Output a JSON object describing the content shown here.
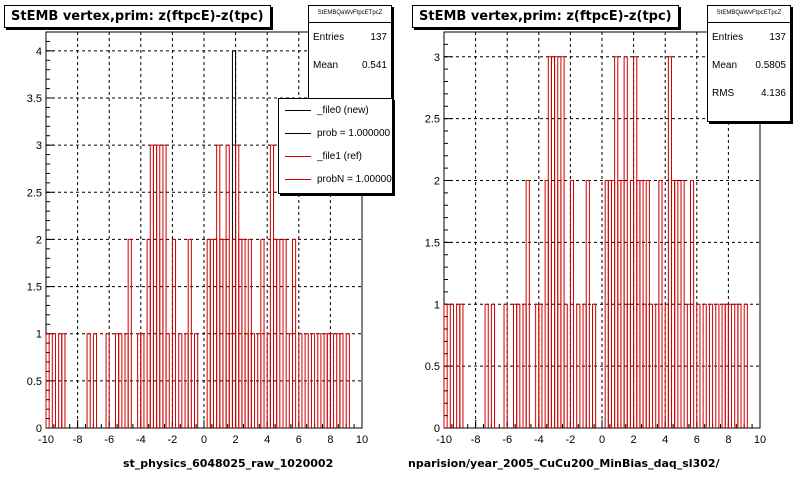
{
  "chart_data": [
    {
      "type": "histogram",
      "title": "StEMB  vertex,prim: z(ftpcE)-z(tpc)",
      "xlabel": "st_physics_6048025_raw_1020002",
      "xlim": [
        -10,
        10
      ],
      "ylim": [
        0,
        4.2
      ],
      "xticks": [
        "-10",
        "-8",
        "-6",
        "-4",
        "-2",
        "0",
        "2",
        "4",
        "6",
        "8",
        "10"
      ],
      "yticks": [
        "0",
        "0.5",
        "1",
        "1.5",
        "2",
        "2.5",
        "3",
        "3.5",
        "4"
      ],
      "grid": true,
      "bin_width": 0.2,
      "series": [
        {
          "name": "_file0 (new)",
          "color": "#000000",
          "values": [
            [
              1.8,
              4
            ]
          ]
        },
        {
          "name": "_file1 (ref)",
          "color": "#cc0000",
          "values": [
            [
              -10,
              1
            ],
            [
              -9.6,
              1
            ],
            [
              -9.2,
              1
            ],
            [
              -9.0,
              1
            ],
            [
              -7.4,
              1
            ],
            [
              -7.0,
              1
            ],
            [
              -6.2,
              1
            ],
            [
              -5.6,
              1
            ],
            [
              -5.4,
              1
            ],
            [
              -5.0,
              1
            ],
            [
              -4.8,
              2
            ],
            [
              -4.2,
              1
            ],
            [
              -4.0,
              1
            ],
            [
              -3.6,
              2
            ],
            [
              -3.4,
              3
            ],
            [
              -3.2,
              3
            ],
            [
              -3.0,
              3
            ],
            [
              -2.8,
              2
            ],
            [
              -2.6,
              3
            ],
            [
              -2.4,
              1
            ],
            [
              -2.0,
              2
            ],
            [
              -1.6,
              1
            ],
            [
              -1.2,
              1
            ],
            [
              -1.0,
              2
            ],
            [
              -0.6,
              1
            ],
            [
              0.2,
              2
            ],
            [
              0.4,
              2
            ],
            [
              0.6,
              2
            ],
            [
              0.8,
              3
            ],
            [
              1.0,
              2
            ],
            [
              1.2,
              2
            ],
            [
              1.4,
              3
            ],
            [
              1.6,
              1
            ],
            [
              1.8,
              2
            ],
            [
              2.0,
              3
            ],
            [
              2.2,
              2
            ],
            [
              2.4,
              2
            ],
            [
              2.6,
              1
            ],
            [
              2.8,
              2
            ],
            [
              3.0,
              1
            ],
            [
              3.4,
              1
            ],
            [
              3.6,
              2
            ],
            [
              4.0,
              1
            ],
            [
              4.2,
              3
            ],
            [
              4.4,
              2
            ],
            [
              4.6,
              2
            ],
            [
              5.0,
              2
            ],
            [
              5.4,
              1
            ],
            [
              5.6,
              2
            ],
            [
              6.0,
              1
            ],
            [
              6.4,
              1
            ],
            [
              6.8,
              1
            ],
            [
              7.2,
              1
            ],
            [
              7.6,
              1
            ],
            [
              7.8,
              1
            ],
            [
              8.0,
              1
            ],
            [
              8.4,
              1
            ],
            [
              8.6,
              1
            ],
            [
              9.0,
              1
            ]
          ]
        }
      ],
      "stats": {
        "name": "StEMBQaWvFtpcETpcZ",
        "entries_label": "Entries",
        "entries": "137",
        "mean_label": "Mean",
        "mean": "0.541"
      },
      "legend": {
        "placement": "top-right",
        "entries": [
          {
            "label": "_file0 (new)",
            "color": "#000000"
          },
          {
            "label": "prob = 1.000000",
            "color": "#000000"
          },
          {
            "label": "_file1 (ref)",
            "color": "#cc0000"
          },
          {
            "label": "probN = 1.000000",
            "color": "#cc0000"
          }
        ]
      }
    },
    {
      "type": "histogram",
      "title": "StEMB  vertex,prim: z(ftpcE)-z(tpc)",
      "xlabel": "nparision/year_2005_CuCu200_MinBias_daq_sl302/",
      "xlim": [
        -10,
        10
      ],
      "ylim": [
        0,
        3.2
      ],
      "xticks": [
        "-10",
        "-8",
        "-6",
        "-4",
        "-2",
        "0",
        "2",
        "4",
        "6",
        "8",
        "10"
      ],
      "yticks": [
        "0",
        "0.5",
        "1",
        "1.5",
        "2",
        "2.5",
        "3"
      ],
      "grid": true,
      "bin_width": 0.2,
      "series": [
        {
          "name": "",
          "color": "#cc0000",
          "values": [
            [
              -10,
              1
            ],
            [
              -9.6,
              1
            ],
            [
              -9.2,
              1
            ],
            [
              -9.0,
              1
            ],
            [
              -7.4,
              1
            ],
            [
              -7.0,
              1
            ],
            [
              -6.2,
              1
            ],
            [
              -5.6,
              1
            ],
            [
              -5.4,
              1
            ],
            [
              -5.0,
              1
            ],
            [
              -4.8,
              2
            ],
            [
              -4.2,
              1
            ],
            [
              -4.0,
              1
            ],
            [
              -3.6,
              2
            ],
            [
              -3.4,
              3
            ],
            [
              -3.2,
              3
            ],
            [
              -3.0,
              3
            ],
            [
              -2.8,
              2
            ],
            [
              -2.6,
              3
            ],
            [
              -2.4,
              1
            ],
            [
              -2.0,
              2
            ],
            [
              -1.6,
              1
            ],
            [
              -1.2,
              1
            ],
            [
              -1.0,
              2
            ],
            [
              -0.6,
              1
            ],
            [
              0.2,
              2
            ],
            [
              0.4,
              2
            ],
            [
              0.6,
              2
            ],
            [
              0.8,
              3
            ],
            [
              1.0,
              2
            ],
            [
              1.2,
              2
            ],
            [
              1.4,
              3
            ],
            [
              1.6,
              1
            ],
            [
              1.8,
              2
            ],
            [
              2.0,
              3
            ],
            [
              2.2,
              2
            ],
            [
              2.4,
              2
            ],
            [
              2.6,
              1
            ],
            [
              2.8,
              2
            ],
            [
              3.0,
              1
            ],
            [
              3.4,
              1
            ],
            [
              3.6,
              2
            ],
            [
              4.0,
              1
            ],
            [
              4.2,
              3
            ],
            [
              4.4,
              2
            ],
            [
              4.6,
              2
            ],
            [
              5.0,
              2
            ],
            [
              5.4,
              1
            ],
            [
              5.6,
              2
            ],
            [
              6.0,
              1
            ],
            [
              6.4,
              1
            ],
            [
              6.8,
              1
            ],
            [
              7.2,
              1
            ],
            [
              7.6,
              1
            ],
            [
              7.8,
              1
            ],
            [
              8.0,
              1
            ],
            [
              8.4,
              1
            ],
            [
              8.6,
              1
            ],
            [
              9.0,
              1
            ]
          ]
        }
      ],
      "stats": {
        "name": "StEMBQaWvFtpcETpcZ",
        "entries_label": "Entries",
        "entries": "137",
        "mean_label": "Mean",
        "mean": "0.5805",
        "rms_label": "RMS",
        "rms": "4.136"
      }
    }
  ]
}
